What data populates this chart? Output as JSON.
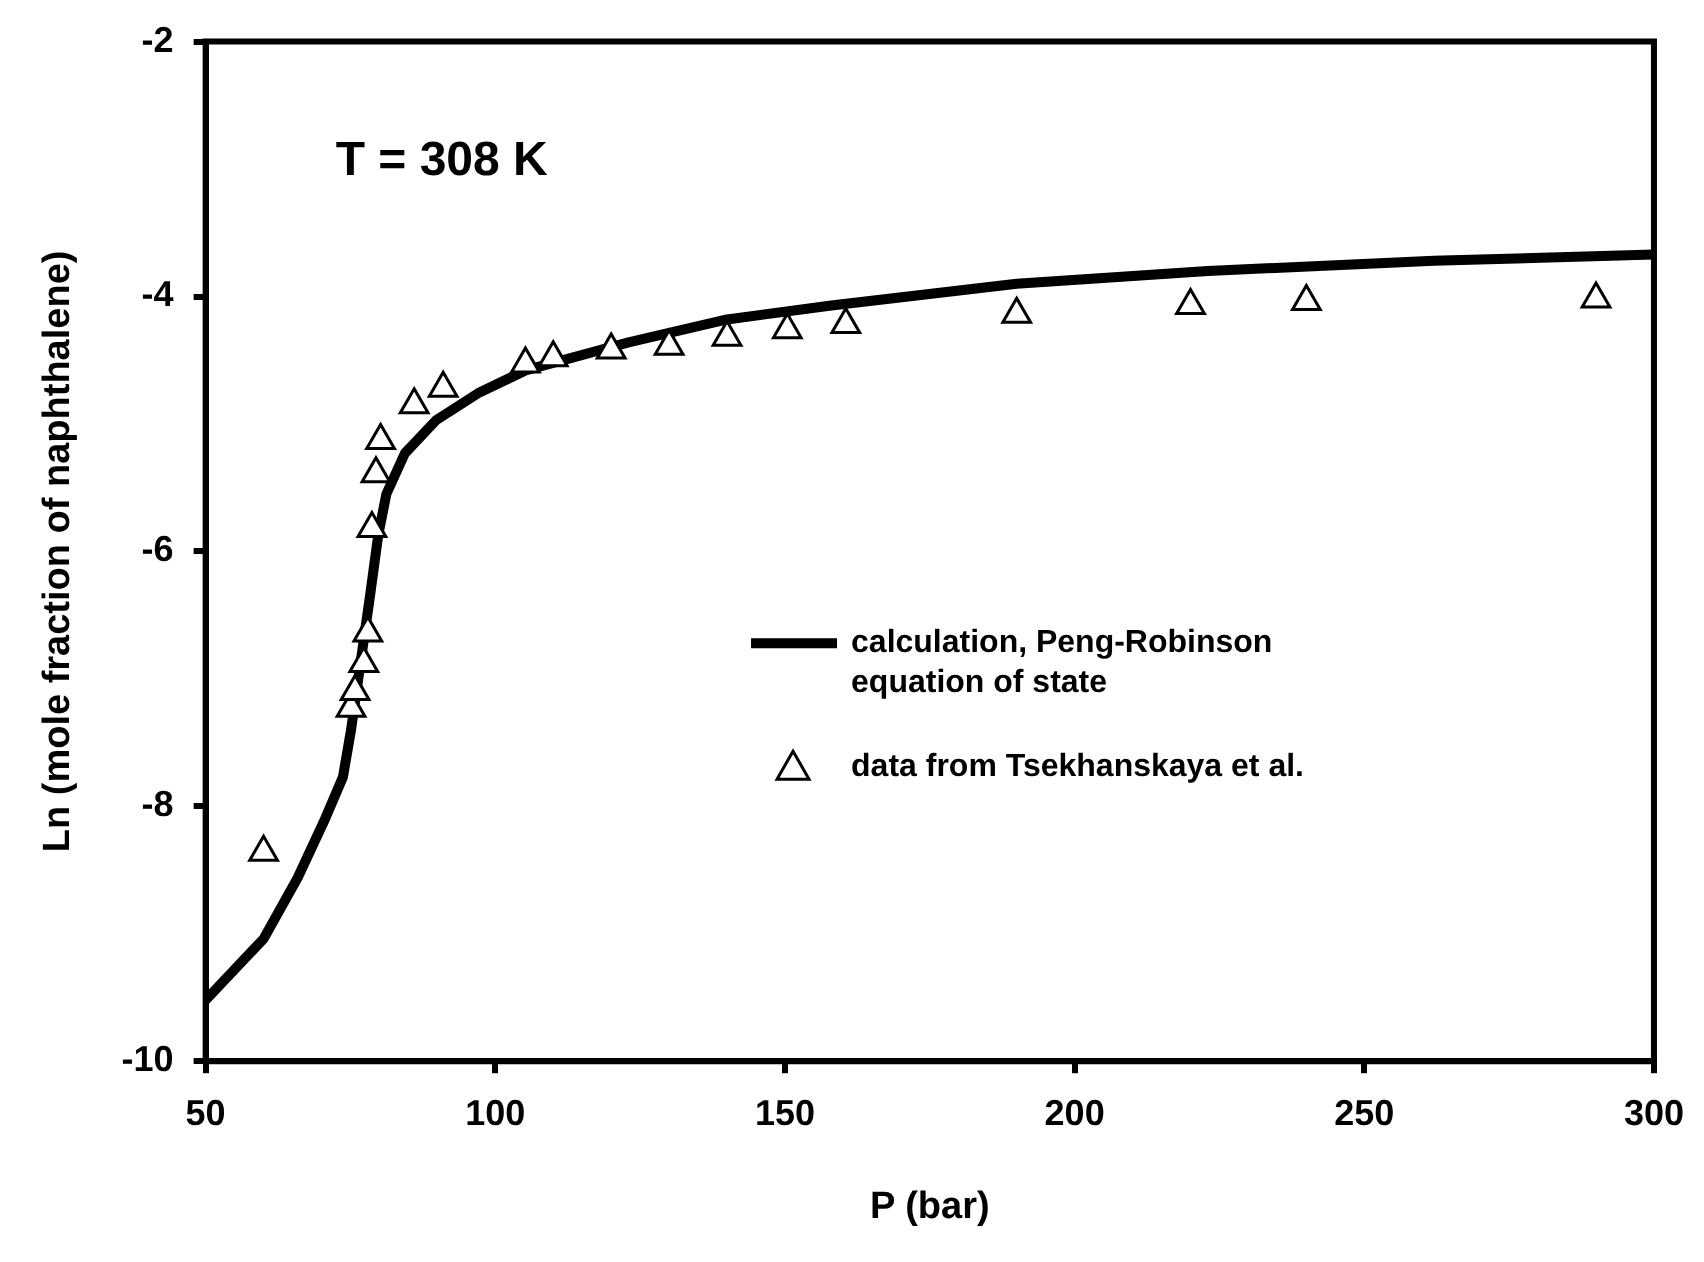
{
  "chart_data": {
    "type": "scatter",
    "xlabel": "P (bar)",
    "ylabel": "Ln (mole fraction of naphthalene)",
    "annotations": [
      "T = 308 K"
    ],
    "xlim": [
      50,
      300
    ],
    "xticks": [
      50,
      100,
      150,
      200,
      250,
      300
    ],
    "ylim": [
      -10,
      -2
    ],
    "yticks": [
      -10,
      -8,
      -6,
      -4,
      -2
    ],
    "grid": false,
    "legend": "right",
    "series": [
      {
        "type": "line",
        "name": "calculation, Peng-Robinson equation of state",
        "color": "#000000",
        "marker": "none",
        "line_style": "solid",
        "x": [
          50,
          60,
          65.9,
          70.7,
          73.7,
          75.1,
          78.4,
          79.8,
          81.2,
          84.4,
          89.8,
          97,
          105.2,
          123,
          140,
          158,
          190,
          223,
          262,
          300
        ],
        "values": [
          -9.52,
          -9.04,
          -8.56,
          -8.09,
          -7.77,
          -7.4,
          -6.34,
          -5.87,
          -5.55,
          -5.23,
          -4.97,
          -4.76,
          -4.58,
          -4.36,
          -4.18,
          -4.07,
          -3.9,
          -3.8,
          -3.72,
          -3.67
        ]
      },
      {
        "name": "data from Tsekhanskaya et al.",
        "color": "#000000",
        "marker": "triangle",
        "x": [
          60,
          75.1,
          75.8,
          77.3,
          78,
          78.7,
          79.4,
          80.2,
          86,
          91,
          105.2,
          110,
          120,
          130,
          140,
          150.4,
          160.5,
          190,
          220,
          240,
          290
        ],
        "values": [
          -8.36,
          -7.23,
          -7.1,
          -6.88,
          -6.64,
          -5.82,
          -5.39,
          -5.13,
          -4.85,
          -4.72,
          -4.53,
          -4.48,
          -4.42,
          -4.39,
          -4.32,
          -4.26,
          -4.22,
          -4.14,
          -4.07,
          -4.04,
          -4.02
        ]
      }
    ]
  }
}
